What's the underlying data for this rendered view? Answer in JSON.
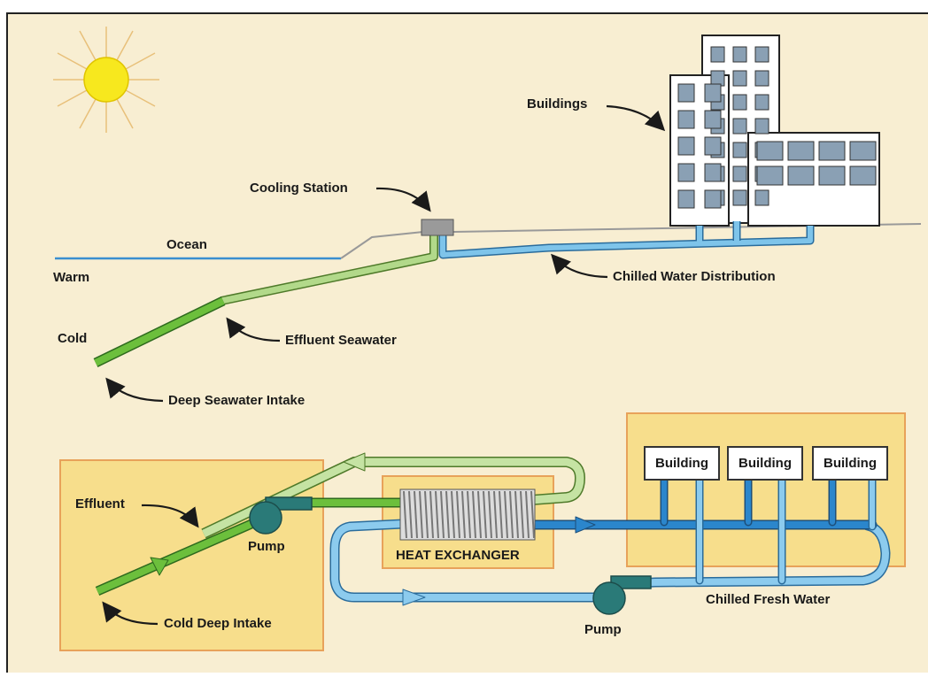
{
  "top": {
    "buildings": "Buildings",
    "cooling_station": "Cooling Station",
    "ocean": "Ocean",
    "warm": "Warm",
    "cold": "Cold",
    "chilled_water_distribution": "Chilled Water Distribution",
    "effluent_seawater": "Effluent Seawater",
    "deep_seawater_intake": "Deep Seawater Intake"
  },
  "bottom": {
    "effluent": "Effluent",
    "pumps": [
      "Pump",
      "Pump"
    ],
    "heat_exchanger": "HEAT EXCHANGER",
    "buildings": [
      "Building",
      "Building",
      "Building"
    ],
    "chilled_fresh_water": "Chilled Fresh Water",
    "cold_deep_intake": "Cold Deep Intake"
  }
}
